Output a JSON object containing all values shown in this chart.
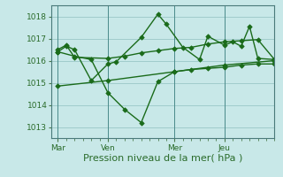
{
  "background_color": "#c8e8e8",
  "grid_color": "#b0d8d8",
  "line_color": "#1a6b1a",
  "marker_color": "#1a6b1a",
  "xlabel": "Pression niveau de la mer( hPa )",
  "ylim": [
    1012.5,
    1018.5
  ],
  "yticks": [
    1013,
    1014,
    1015,
    1016,
    1017,
    1018
  ],
  "xtick_labels": [
    "Mar",
    "Ven",
    "Mer",
    "Jeu"
  ],
  "xtick_positions": [
    0,
    36,
    84,
    120
  ],
  "xlim": [
    -5,
    156
  ],
  "series1_x": [
    0,
    6,
    12,
    36,
    48,
    60,
    72,
    84,
    96,
    108,
    120,
    132,
    144,
    156
  ],
  "series1_y": [
    1016.5,
    1016.7,
    1016.15,
    1016.1,
    1016.2,
    1016.35,
    1016.45,
    1016.55,
    1016.6,
    1016.75,
    1016.85,
    1016.9,
    1016.95,
    1016.05
  ],
  "series2_x": [
    0,
    12,
    24,
    36,
    48,
    60,
    72,
    84,
    96,
    108,
    120,
    132,
    144,
    156
  ],
  "series2_y": [
    1016.4,
    1016.2,
    1016.05,
    1014.55,
    1013.8,
    1013.2,
    1015.05,
    1015.5,
    1015.6,
    1015.65,
    1015.7,
    1015.8,
    1015.85,
    1015.85
  ],
  "series3_x": [
    0,
    6,
    12,
    24,
    36,
    42,
    60,
    72,
    78,
    90,
    102,
    108,
    120,
    126,
    132,
    138,
    144,
    156
  ],
  "series3_y": [
    1016.4,
    1016.65,
    1016.5,
    1015.1,
    1015.85,
    1015.95,
    1017.05,
    1018.1,
    1017.65,
    1016.6,
    1016.05,
    1017.1,
    1016.7,
    1016.85,
    1016.65,
    1017.55,
    1016.1,
    1016.05
  ],
  "series4_x": [
    0,
    36,
    84,
    120,
    156
  ],
  "series4_y": [
    1014.85,
    1015.1,
    1015.5,
    1015.8,
    1016.0
  ],
  "vline_x": [
    0,
    36,
    84,
    120
  ],
  "ylabel_fontsize": 6.5,
  "xlabel_fontsize": 8,
  "tick_label_color": "#2a6b2a"
}
